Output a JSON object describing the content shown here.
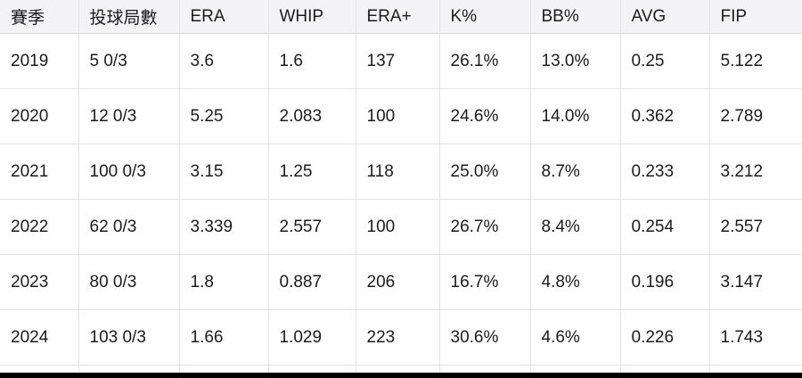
{
  "table": {
    "headers": [
      "賽季",
      "投球局數",
      "ERA",
      "WHIP",
      "ERA+",
      "K%",
      "BB%",
      "AVG",
      "FIP"
    ],
    "rows": [
      [
        "2019",
        "5 0/3",
        "3.6",
        "1.6",
        "137",
        "26.1%",
        "13.0%",
        "0.25",
        "5.122"
      ],
      [
        "2020",
        "12 0/3",
        "5.25",
        "2.083",
        "100",
        "24.6%",
        "14.0%",
        "0.362",
        "2.789"
      ],
      [
        "2021",
        "100 0/3",
        "3.15",
        "1.25",
        "118",
        "25.0%",
        "8.7%",
        "0.233",
        "3.212"
      ],
      [
        "2022",
        "62 0/3",
        "3.339",
        "2.557",
        "100",
        "26.7%",
        "8.4%",
        "0.254",
        "2.557"
      ],
      [
        "2023",
        "80 0/3",
        "1.8",
        "0.887",
        "206",
        "16.7%",
        "4.8%",
        "0.196",
        "3.147"
      ],
      [
        "2024",
        "103 0/3",
        "1.66",
        "1.029",
        "223",
        "30.6%",
        "4.6%",
        "0.226",
        "1.743"
      ]
    ]
  }
}
